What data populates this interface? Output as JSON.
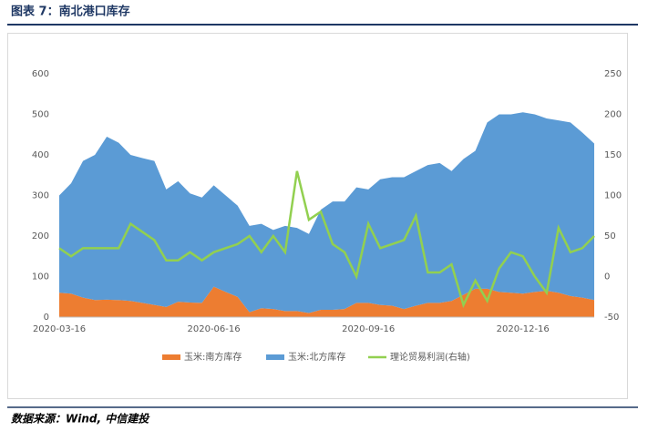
{
  "chart_data": {
    "type": "stacked-area-line",
    "title": "图表 7：南北港口库存",
    "source": "数据来源：Wind, 中信建投",
    "categories": [
      "2020-03-16",
      null,
      null,
      null,
      null,
      null,
      null,
      null,
      null,
      null,
      null,
      null,
      null,
      "2020-06-16",
      null,
      null,
      null,
      null,
      null,
      null,
      null,
      null,
      null,
      null,
      null,
      null,
      "2020-09-16",
      null,
      null,
      null,
      null,
      null,
      null,
      null,
      null,
      null,
      null,
      null,
      null,
      "2020-12-16",
      null,
      null,
      null,
      null,
      null,
      null
    ],
    "series": [
      {
        "name": "玉米:南方库存",
        "color": "#ED7D31",
        "kind": "area",
        "values": [
          60,
          58,
          48,
          42,
          43,
          42,
          40,
          35,
          30,
          25,
          38,
          36,
          35,
          75,
          62,
          50,
          12,
          22,
          20,
          15,
          15,
          10,
          18,
          18,
          20,
          35,
          35,
          30,
          28,
          20,
          28,
          35,
          35,
          40,
          55,
          70,
          70,
          62,
          60,
          58,
          62,
          65,
          60,
          52,
          48,
          42
        ]
      },
      {
        "name": "玉米:北方库存",
        "color": "#5B9BD5",
        "kind": "area",
        "values": [
          240,
          272,
          337,
          358,
          402,
          388,
          360,
          357,
          355,
          290,
          297,
          269,
          260,
          250,
          238,
          225,
          213,
          208,
          195,
          210,
          205,
          195,
          247,
          267,
          265,
          285,
          280,
          310,
          317,
          325,
          332,
          340,
          345,
          320,
          335,
          340,
          410,
          438,
          440,
          447,
          438,
          425,
          425,
          428,
          407,
          386
        ]
      },
      {
        "name": "理论贸易利润(右轴)",
        "color": "#92D050",
        "kind": "line",
        "axis": "y2",
        "values": [
          35,
          25,
          35,
          35,
          35,
          35,
          65,
          55,
          45,
          20,
          20,
          30,
          20,
          30,
          35,
          40,
          50,
          30,
          50,
          30,
          130,
          70,
          80,
          40,
          30,
          0,
          65,
          35,
          40,
          45,
          75,
          5,
          5,
          15,
          -35,
          -5,
          -30,
          10,
          30,
          25,
          0,
          -20,
          60,
          30,
          35,
          50
        ]
      }
    ],
    "ylim": [
      0,
      600
    ],
    "yticks": [
      0,
      100,
      200,
      300,
      400,
      500,
      600
    ],
    "y2lim": [
      -50,
      250
    ],
    "y2ticks": [
      -50,
      0,
      50,
      100,
      150,
      200,
      250
    ],
    "legend": "bottom"
  }
}
